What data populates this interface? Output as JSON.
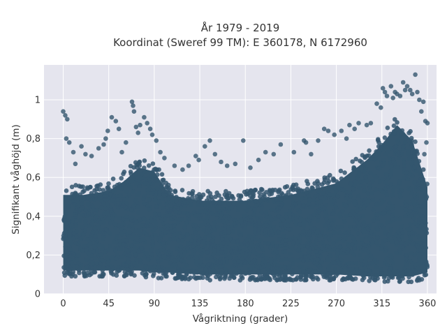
{
  "chart_data": {
    "type": "scatter",
    "title_line1": "År 1979 - 2019",
    "title_line2": "Koordinat (Sweref 99 TM): E 360178, N 6172960",
    "xlabel": "Vågriktning (grader)",
    "ylabel": "Signifikant våghöjd (m)",
    "xlim": [
      -19,
      369
    ],
    "ylim": [
      0,
      1.18
    ],
    "x_ticks": [
      0,
      45,
      90,
      135,
      180,
      225,
      270,
      315,
      360
    ],
    "x_tick_labels": [
      "0",
      "45",
      "90",
      "135",
      "180",
      "225",
      "270",
      "315",
      "360"
    ],
    "y_ticks": [
      0,
      0.2,
      0.4,
      0.6,
      0.8,
      1.0
    ],
    "y_tick_labels": [
      "0",
      "0,2",
      "0,4",
      "0,6",
      "0,8",
      "1"
    ],
    "grid": true,
    "colors": {
      "points": "#34566e",
      "plot_bg": "#e5e5ee",
      "grid": "#ffffff"
    },
    "series": [
      {
        "x_range": [
          0,
          360
        ],
        "dense_band": [
          [
            0,
            0.09,
            0.56
          ],
          [
            20,
            0.09,
            0.56
          ],
          [
            45,
            0.09,
            0.58
          ],
          [
            60,
            0.09,
            0.63
          ],
          [
            75,
            0.09,
            0.7
          ],
          [
            90,
            0.08,
            0.68
          ],
          [
            105,
            0.08,
            0.56
          ],
          [
            135,
            0.07,
            0.53
          ],
          [
            180,
            0.07,
            0.53
          ],
          [
            225,
            0.07,
            0.56
          ],
          [
            270,
            0.07,
            0.62
          ],
          [
            300,
            0.06,
            0.74
          ],
          [
            315,
            0.06,
            0.82
          ],
          [
            330,
            0.06,
            0.92
          ],
          [
            345,
            0.06,
            0.84
          ],
          [
            360,
            0.08,
            0.6
          ]
        ],
        "outliers": [
          [
            0,
            0.94
          ],
          [
            2,
            0.92
          ],
          [
            4,
            0.9
          ],
          [
            3,
            0.8
          ],
          [
            6,
            0.78
          ],
          [
            10,
            0.73
          ],
          [
            12,
            0.67
          ],
          [
            18,
            0.76
          ],
          [
            22,
            0.72
          ],
          [
            28,
            0.71
          ],
          [
            35,
            0.75
          ],
          [
            40,
            0.77
          ],
          [
            42,
            0.8
          ],
          [
            44,
            0.84
          ],
          [
            48,
            0.91
          ],
          [
            52,
            0.89
          ],
          [
            55,
            0.85
          ],
          [
            58,
            0.73
          ],
          [
            62,
            0.78
          ],
          [
            68,
            0.99
          ],
          [
            69,
            0.97
          ],
          [
            70,
            0.94
          ],
          [
            72,
            0.86
          ],
          [
            74,
            0.83
          ],
          [
            76,
            0.87
          ],
          [
            80,
            0.91
          ],
          [
            83,
            0.88
          ],
          [
            86,
            0.85
          ],
          [
            88,
            0.82
          ],
          [
            92,
            0.79
          ],
          [
            96,
            0.73
          ],
          [
            100,
            0.7
          ],
          [
            110,
            0.66
          ],
          [
            118,
            0.64
          ],
          [
            124,
            0.66
          ],
          [
            131,
            0.71
          ],
          [
            134,
            0.69
          ],
          [
            140,
            0.76
          ],
          [
            145,
            0.79
          ],
          [
            150,
            0.72
          ],
          [
            156,
            0.68
          ],
          [
            162,
            0.66
          ],
          [
            170,
            0.67
          ],
          [
            178,
            0.79
          ],
          [
            185,
            0.65
          ],
          [
            193,
            0.69
          ],
          [
            200,
            0.73
          ],
          [
            208,
            0.72
          ],
          [
            215,
            0.77
          ],
          [
            228,
            0.73
          ],
          [
            238,
            0.79
          ],
          [
            240,
            0.78
          ],
          [
            245,
            0.72
          ],
          [
            252,
            0.79
          ],
          [
            258,
            0.85
          ],
          [
            262,
            0.84
          ],
          [
            268,
            0.82
          ],
          [
            275,
            0.84
          ],
          [
            280,
            0.8
          ],
          [
            283,
            0.87
          ],
          [
            288,
            0.85
          ],
          [
            292,
            0.88
          ],
          [
            300,
            0.87
          ],
          [
            304,
            0.88
          ],
          [
            310,
            0.98
          ],
          [
            314,
            0.96
          ],
          [
            316,
            1.06
          ],
          [
            318,
            1.04
          ],
          [
            320,
            1.02
          ],
          [
            324,
            1.07
          ],
          [
            326,
            1.01
          ],
          [
            328,
            1.04
          ],
          [
            330,
            1.03
          ],
          [
            333,
            1.02
          ],
          [
            336,
            1.09
          ],
          [
            338,
            1.05
          ],
          [
            340,
            1.07
          ],
          [
            343,
            1.05
          ],
          [
            345,
            1.03
          ],
          [
            348,
            1.13
          ],
          [
            350,
            1.04
          ],
          [
            352,
            1.0
          ],
          [
            354,
            0.94
          ],
          [
            356,
            0.99
          ],
          [
            358,
            0.89
          ],
          [
            360,
            0.88
          ],
          [
            359,
            0.78
          ],
          [
            357,
            0.72
          ]
        ]
      }
    ]
  }
}
